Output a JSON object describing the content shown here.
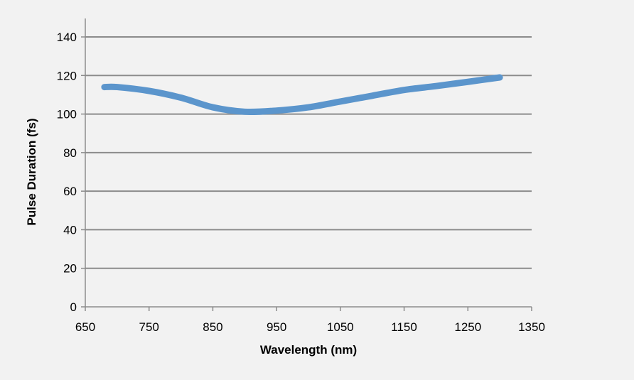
{
  "chart_data": {
    "type": "line",
    "title": "",
    "xlabel": "Wavelength (nm)",
    "ylabel": "Pulse Duration (fs)",
    "xlim": [
      650,
      1350
    ],
    "ylim": [
      0,
      140
    ],
    "xticks": [
      650,
      750,
      850,
      950,
      1050,
      1150,
      1250,
      1350
    ],
    "yticks": [
      0,
      20,
      40,
      60,
      80,
      100,
      120,
      140
    ],
    "grid": "horizontal",
    "series_color": "#5b95cc",
    "series": [
      {
        "x": [
          680,
          700,
          750,
          800,
          850,
          900,
          950,
          1000,
          1050,
          1100,
          1150,
          1200,
          1250,
          1300
        ],
        "y": [
          114,
          114,
          112,
          108.5,
          103.5,
          101.2,
          101.8,
          103.5,
          106.5,
          109.5,
          112.5,
          114.5,
          116.7,
          119
        ]
      }
    ]
  }
}
